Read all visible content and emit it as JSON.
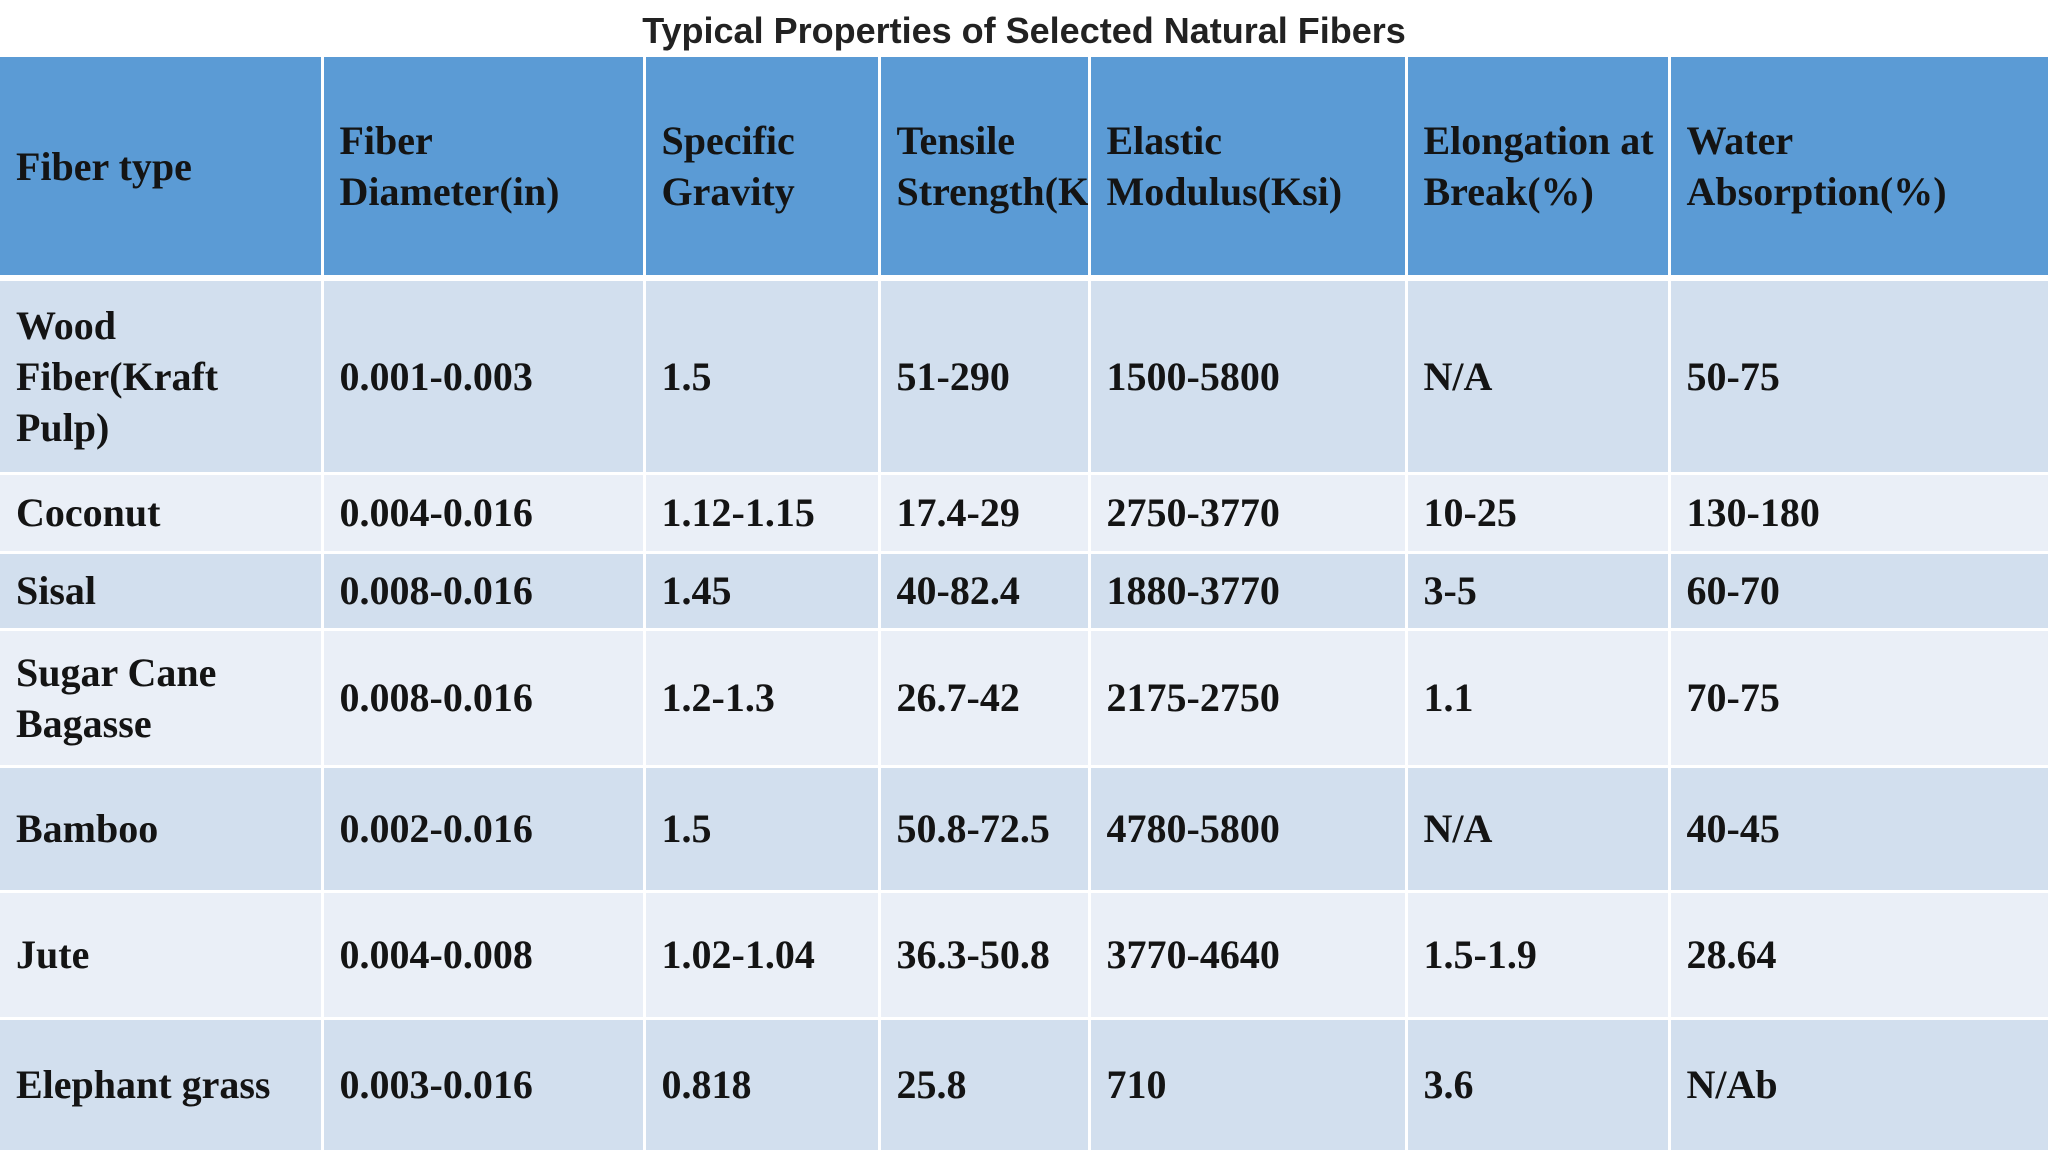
{
  "title": "Typical Properties of Selected Natural Fibers",
  "colors": {
    "header_bg": "#5b9bd5",
    "row_odd_bg": "#d2dfee",
    "row_even_bg": "#eaeff7"
  },
  "table": {
    "headers": [
      "Fiber type",
      "Fiber Diameter(in)",
      "Specific Gravity",
      "Tensile Strength(Ksi)",
      "Elastic Modulus(Ksi)",
      "Elongation at Break(%)",
      "Water Absorption(%)"
    ],
    "rows": [
      [
        "Wood Fiber(Kraft Pulp)",
        "0.001-0.003",
        "1.5",
        "51-290",
        "1500-5800",
        "N/A",
        "50-75"
      ],
      [
        "Coconut",
        "0.004-0.016",
        "1.12-1.15",
        "17.4-29",
        "2750-3770",
        "10-25",
        "130-180"
      ],
      [
        "Sisal",
        "0.008-0.016",
        "1.45",
        "40-82.4",
        "1880-3770",
        "3-5",
        "60-70"
      ],
      [
        "Sugar Cane Bagasse",
        "0.008-0.016",
        "1.2-1.3",
        "26.7-42",
        "2175-2750",
        "1.1",
        "70-75"
      ],
      [
        "Bamboo",
        "0.002-0.016",
        "1.5",
        "50.8-72.5",
        "4780-5800",
        "N/A",
        "40-45"
      ],
      [
        "Jute",
        "0.004-0.008",
        "1.02-1.04",
        "36.3-50.8",
        "3770-4640",
        "1.5-1.9",
        "28.64"
      ],
      [
        "Elephant grass",
        "0.003-0.016",
        "0.818",
        "25.8",
        "710",
        "3.6",
        "N/Ab"
      ]
    ]
  }
}
